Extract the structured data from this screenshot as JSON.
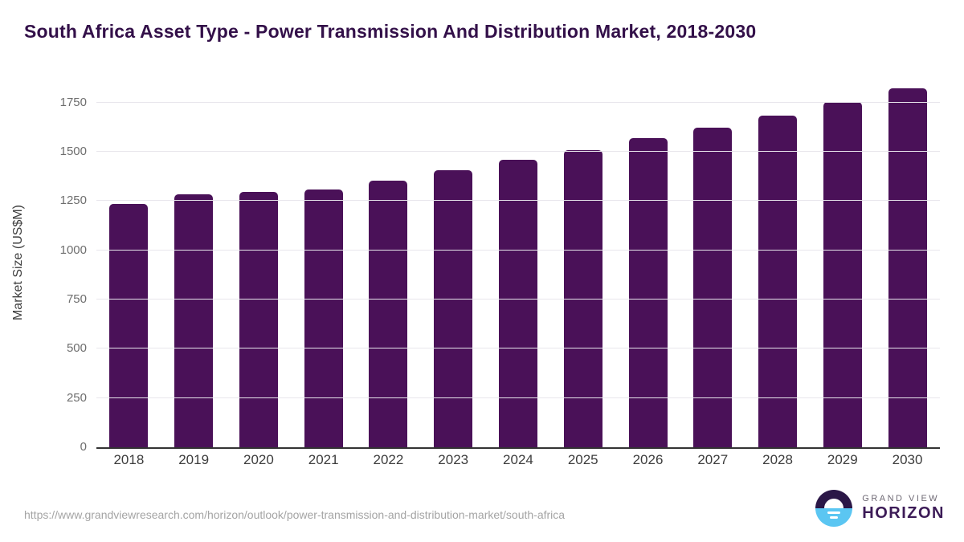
{
  "title": "South Africa Asset Type - Power Transmission And Distribution Market, 2018-2030",
  "chart_data": {
    "type": "bar",
    "categories": [
      "2018",
      "2019",
      "2020",
      "2021",
      "2022",
      "2023",
      "2024",
      "2025",
      "2026",
      "2027",
      "2028",
      "2029",
      "2030"
    ],
    "values": [
      1235,
      1286,
      1296,
      1310,
      1353,
      1407,
      1458,
      1509,
      1570,
      1624,
      1686,
      1754,
      1823
    ],
    "title": "South Africa Asset Type - Power Transmission And Distribution Market, 2018-2030",
    "xlabel": "",
    "ylabel": "Market Size (US$M)",
    "ylim": [
      0,
      1880
    ],
    "yticks": [
      0,
      250,
      500,
      750,
      1000,
      1250,
      1500,
      1750
    ],
    "grid": true,
    "legend": "none",
    "bar_color": "#4a1158"
  },
  "footer": {
    "source_url": "https://www.grandviewresearch.com/horizon/outlook/power-transmission-and-distribution-market/south-africa",
    "logo": {
      "icon": "sunrise-horizon-icon",
      "top_text": "GRAND VIEW",
      "bottom_text": "HORIZON",
      "dark_color": "#2b1747",
      "blue_color": "#5bc6f2"
    }
  },
  "colors": {
    "bar": "#4a1158",
    "title_text": "#331049",
    "gridline": "#e8e6ec",
    "axis_line": "#333333",
    "y_tick_text": "#6e6e6e",
    "x_tick_text": "#3c3c3c",
    "url_text": "#a4a4a4"
  }
}
